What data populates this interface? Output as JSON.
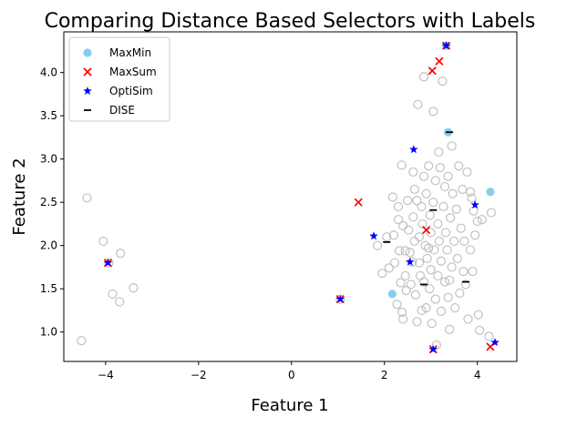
{
  "chart_data": {
    "type": "scatter",
    "title": "Comparing Distance Based Selectors with Labels",
    "xlabel": "Feature 1",
    "ylabel": "Feature 2",
    "xlim": [
      -4.9,
      4.85
    ],
    "ylim": [
      0.66,
      4.47
    ],
    "xticks": [
      -4,
      -2,
      0,
      2,
      4
    ],
    "yticks": [
      1.0,
      1.5,
      2.0,
      2.5,
      3.0,
      3.5,
      4.0
    ],
    "xtick_labels": [
      "−4",
      "−2",
      "0",
      "2",
      "4"
    ],
    "ytick_labels": [
      "1.0",
      "1.5",
      "2.0",
      "2.5",
      "3.0",
      "3.5",
      "4.0"
    ],
    "grid": false,
    "legend_position": "upper-left",
    "background": {
      "color": "#c0c0c0",
      "points": [
        [
          -4.52,
          0.9
        ],
        [
          -4.4,
          2.55
        ],
        [
          -4.05,
          2.05
        ],
        [
          -3.93,
          1.8
        ],
        [
          -3.85,
          1.44
        ],
        [
          -3.68,
          1.91
        ],
        [
          -3.7,
          1.35
        ],
        [
          -3.4,
          1.51
        ],
        [
          1.05,
          1.38
        ],
        [
          1.85,
          2.0
        ],
        [
          1.95,
          1.68
        ],
        [
          2.05,
          2.1
        ],
        [
          2.1,
          1.74
        ],
        [
          2.18,
          2.56
        ],
        [
          2.2,
          2.12
        ],
        [
          2.22,
          1.8
        ],
        [
          2.27,
          1.32
        ],
        [
          2.3,
          2.45
        ],
        [
          2.3,
          2.3
        ],
        [
          2.32,
          1.94
        ],
        [
          2.35,
          1.57
        ],
        [
          2.37,
          2.93
        ],
        [
          2.38,
          1.23
        ],
        [
          2.4,
          2.23
        ],
        [
          2.4,
          1.15
        ],
        [
          2.45,
          1.65
        ],
        [
          2.45,
          1.94
        ],
        [
          2.47,
          1.48
        ],
        [
          2.5,
          2.52
        ],
        [
          2.52,
          2.18
        ],
        [
          2.55,
          1.92
        ],
        [
          2.57,
          1.55
        ],
        [
          2.6,
          1.81
        ],
        [
          2.62,
          2.33
        ],
        [
          2.65,
          2.65
        ],
        [
          2.65,
          2.05
        ],
        [
          2.67,
          1.43
        ],
        [
          2.7,
          2.52
        ],
        [
          2.7,
          1.12
        ],
        [
          2.72,
          3.63
        ],
        [
          2.75,
          2.1
        ],
        [
          2.75,
          1.8
        ],
        [
          2.77,
          1.65
        ],
        [
          2.8,
          2.45
        ],
        [
          2.82,
          2.25
        ],
        [
          2.85,
          3.95
        ],
        [
          2.85,
          2.8
        ],
        [
          2.85,
          1.58
        ],
        [
          2.88,
          2.0
        ],
        [
          2.9,
          2.6
        ],
        [
          2.9,
          1.28
        ],
        [
          2.92,
          1.85
        ],
        [
          2.95,
          2.92
        ],
        [
          2.97,
          1.5
        ],
        [
          2.98,
          2.35
        ],
        [
          3.0,
          2.15
        ],
        [
          3.0,
          1.72
        ],
        [
          3.02,
          1.1
        ],
        [
          3.05,
          3.55
        ],
        [
          3.05,
          2.5
        ],
        [
          3.07,
          1.95
        ],
        [
          3.1,
          2.75
        ],
        [
          3.1,
          1.38
        ],
        [
          3.12,
          0.85
        ],
        [
          3.15,
          2.25
        ],
        [
          3.15,
          1.65
        ],
        [
          3.17,
          3.08
        ],
        [
          3.18,
          2.05
        ],
        [
          3.2,
          2.9
        ],
        [
          3.22,
          1.82
        ],
        [
          3.22,
          1.24
        ],
        [
          3.25,
          3.9
        ],
        [
          3.27,
          2.45
        ],
        [
          3.3,
          2.68
        ],
        [
          3.3,
          1.58
        ],
        [
          3.32,
          2.15
        ],
        [
          3.35,
          1.95
        ],
        [
          3.37,
          2.8
        ],
        [
          3.37,
          1.4
        ],
        [
          3.4,
          1.03
        ],
        [
          3.42,
          2.32
        ],
        [
          3.45,
          3.15
        ],
        [
          3.45,
          1.75
        ],
        [
          3.47,
          2.6
        ],
        [
          3.5,
          2.05
        ],
        [
          3.52,
          1.28
        ],
        [
          3.55,
          2.42
        ],
        [
          3.57,
          1.85
        ],
        [
          3.6,
          2.92
        ],
        [
          3.62,
          1.45
        ],
        [
          3.65,
          2.2
        ],
        [
          3.68,
          2.65
        ],
        [
          3.7,
          1.7
        ],
        [
          3.72,
          2.05
        ],
        [
          3.75,
          1.55
        ],
        [
          3.78,
          2.85
        ],
        [
          3.8,
          1.15
        ],
        [
          3.85,
          1.95
        ],
        [
          3.88,
          2.55
        ],
        [
          3.9,
          1.7
        ],
        [
          3.92,
          2.4
        ],
        [
          3.95,
          2.12
        ],
        [
          4.0,
          2.28
        ],
        [
          4.02,
          1.2
        ],
        [
          4.05,
          1.02
        ],
        [
          4.1,
          2.3
        ],
        [
          4.25,
          0.95
        ],
        [
          4.3,
          2.38
        ],
        [
          3.85,
          2.62
        ],
        [
          2.62,
          2.85
        ],
        [
          2.95,
          1.97
        ],
        [
          3.4,
          1.6
        ],
        [
          2.8,
          1.25
        ]
      ]
    },
    "series": [
      {
        "name": "MaxMin",
        "marker": "circle",
        "color": "#87ceeb",
        "points": [
          [
            2.17,
            1.44
          ],
          [
            3.37,
            3.31
          ],
          [
            4.28,
            2.62
          ],
          [
            3.33,
            4.31
          ]
        ]
      },
      {
        "name": "MaxSum",
        "marker": "x",
        "color": "#ff0000",
        "points": [
          [
            -3.95,
            1.8
          ],
          [
            1.05,
            1.38
          ],
          [
            1.44,
            2.5
          ],
          [
            2.9,
            2.18
          ],
          [
            3.03,
            4.02
          ],
          [
            3.18,
            4.13
          ],
          [
            3.33,
            4.31
          ],
          [
            3.05,
            0.8
          ],
          [
            4.28,
            0.83
          ]
        ]
      },
      {
        "name": "OptiSim",
        "marker": "star",
        "color": "#0000ff",
        "points": [
          [
            -3.95,
            1.8
          ],
          [
            1.05,
            1.38
          ],
          [
            1.77,
            2.11
          ],
          [
            2.55,
            1.81
          ],
          [
            2.63,
            3.11
          ],
          [
            3.33,
            4.31
          ],
          [
            3.95,
            2.47
          ],
          [
            3.05,
            0.8
          ],
          [
            4.38,
            0.88
          ]
        ]
      },
      {
        "name": "DISE",
        "marker": "hline",
        "color": "#000000",
        "points": [
          [
            2.05,
            2.04
          ],
          [
            2.85,
            1.55
          ],
          [
            3.05,
            2.41
          ],
          [
            3.4,
            3.31
          ],
          [
            3.75,
            1.58
          ]
        ]
      }
    ]
  }
}
